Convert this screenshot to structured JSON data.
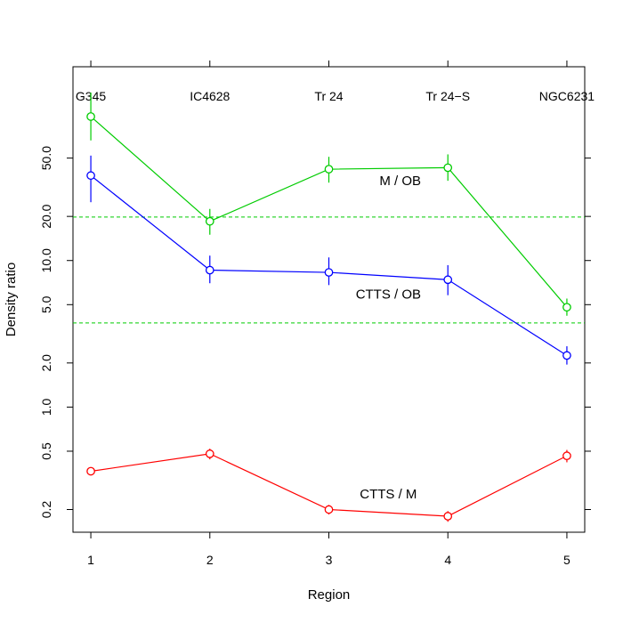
{
  "chart_data": {
    "type": "line",
    "xlabel": "Region",
    "ylabel": "Density ratio",
    "y_scale": "log",
    "xlim": [
      0.85,
      5.15
    ],
    "ylim": [
      0.14,
      210
    ],
    "x": [
      1,
      2,
      3,
      4,
      5
    ],
    "x_tick_labels": [
      "1",
      "2",
      "3",
      "4",
      "5"
    ],
    "y_ticks": [
      0.2,
      0.5,
      1.0,
      2.0,
      5.0,
      10.0,
      20.0,
      50.0
    ],
    "y_tick_labels": [
      "0.2",
      "0.5",
      "1.0",
      "2.0",
      "5.0",
      "10.0",
      "20.0",
      "50.0"
    ],
    "region_labels": [
      "G345",
      "IC4628",
      "Tr 24",
      "Tr 24−S",
      "NGC6231"
    ],
    "reference_lines": [
      {
        "y": 19.8,
        "color": "#00cc00",
        "style": "dashed"
      },
      {
        "y": 3.75,
        "color": "#00cc00",
        "style": "dashed"
      }
    ],
    "series": [
      {
        "name": "M / OB",
        "color": "#00cc00",
        "values": [
          96,
          18.5,
          42,
          43,
          4.8
        ],
        "err_low": [
          66,
          15,
          34,
          35,
          4.2
        ],
        "err_high": [
          140,
          22.5,
          51,
          53,
          5.5
        ],
        "label_at": [
          3.6,
          35
        ]
      },
      {
        "name": "CTTS / OB",
        "color": "#0000ff",
        "values": [
          38,
          8.6,
          8.3,
          7.4,
          2.25
        ],
        "err_low": [
          25,
          7.0,
          6.8,
          5.8,
          1.95
        ],
        "err_high": [
          52,
          10.8,
          10.5,
          9.3,
          2.6
        ],
        "label_at": [
          3.5,
          5.9
        ]
      },
      {
        "name": "CTTS / M",
        "color": "#ff0000",
        "values": [
          0.365,
          0.48,
          0.2,
          0.18,
          0.465
        ],
        "err_low": [
          0.345,
          0.44,
          0.185,
          0.165,
          0.42
        ],
        "err_high": [
          0.385,
          0.52,
          0.215,
          0.195,
          0.51
        ],
        "label_at": [
          3.5,
          0.255
        ]
      }
    ]
  }
}
